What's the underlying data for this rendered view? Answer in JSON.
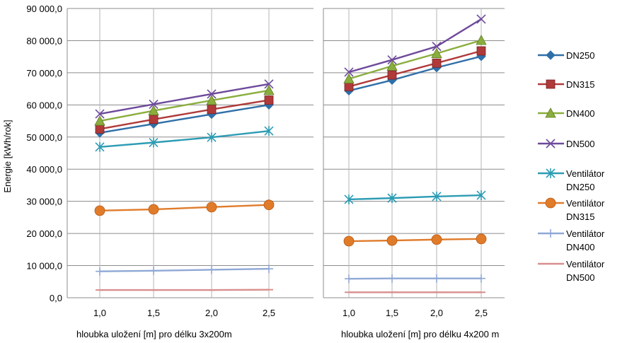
{
  "chart_data": {
    "type": "line",
    "ylabel": "Energie [kWh/rok]",
    "ylim": [
      0,
      90000
    ],
    "yticks": [
      0,
      10000,
      20000,
      30000,
      40000,
      50000,
      60000,
      70000,
      80000,
      90000
    ],
    "ytick_labels": [
      "0,0",
      "10 000,0",
      "20 000,0",
      "30 000,0",
      "40 000,0",
      "50 000,0",
      "60 000,0",
      "70 000,0",
      "80 000,0",
      "90 000,0"
    ],
    "categories": [
      "1,0",
      "1,5",
      "2,0",
      "2,5"
    ],
    "grid": true,
    "legend_position": "right",
    "series_styles": [
      {
        "name": "DN250",
        "label_lines": [
          "DN250"
        ],
        "color": "#2F6FA8",
        "marker": "diamond"
      },
      {
        "name": "DN315",
        "label_lines": [
          "DN315"
        ],
        "color": "#B03A3A",
        "marker": "square"
      },
      {
        "name": "DN400",
        "label_lines": [
          "DN400"
        ],
        "color": "#8AAE3E",
        "marker": "triangle"
      },
      {
        "name": "DN500",
        "label_lines": [
          "DN500"
        ],
        "color": "#6E4A9B",
        "marker": "x"
      },
      {
        "name": "Ventilátor DN250",
        "label_lines": [
          "Ventilátor",
          "DN250"
        ],
        "color": "#2D9CB4",
        "marker": "star"
      },
      {
        "name": "Ventilátor DN315",
        "label_lines": [
          "Ventilátor",
          "DN315"
        ],
        "color": "#E07B2A",
        "marker": "circle"
      },
      {
        "name": "Ventilátor DN400",
        "label_lines": [
          "Ventilátor",
          "DN400"
        ],
        "color": "#8FA8D6",
        "marker": "plus"
      },
      {
        "name": "Ventilátor DN500",
        "label_lines": [
          "Ventilátor",
          "DN500"
        ],
        "color": "#D98E8E",
        "marker": "dash"
      }
    ],
    "panels": [
      {
        "xlabel": "hloubka uložení [m] pro délku 3x200m",
        "series": [
          {
            "name": "DN250",
            "values": [
              51300,
              54100,
              57100,
              60000
            ]
          },
          {
            "name": "DN315",
            "values": [
              52500,
              55500,
              58600,
              61500
            ]
          },
          {
            "name": "DN400",
            "values": [
              55000,
              58200,
              61400,
              64500
            ]
          },
          {
            "name": "DN500",
            "values": [
              57200,
              60200,
              63400,
              66500
            ]
          },
          {
            "name": "Ventilátor DN250",
            "values": [
              46900,
              48300,
              49900,
              51900
            ]
          },
          {
            "name": "Ventilátor DN315",
            "values": [
              27100,
              27500,
              28200,
              28900
            ]
          },
          {
            "name": "Ventilátor DN400",
            "values": [
              8200,
              8400,
              8700,
              9000
            ]
          },
          {
            "name": "Ventilátor DN500",
            "values": [
              2400,
              2400,
              2400,
              2500
            ]
          }
        ]
      },
      {
        "xlabel": "hloubka uložení [m] pro délku 4x200 m",
        "series": [
          {
            "name": "DN250",
            "values": [
              64400,
              67700,
              71600,
              75100
            ]
          },
          {
            "name": "DN315",
            "values": [
              65700,
              69300,
              73000,
              76800
            ]
          },
          {
            "name": "DN400",
            "values": [
              68100,
              72100,
              76000,
              80100
            ]
          },
          {
            "name": "DN500",
            "values": [
              70200,
              74000,
              78200,
              86700
            ]
          },
          {
            "name": "Ventilátor DN250",
            "values": [
              30600,
              31000,
              31500,
              31900
            ]
          },
          {
            "name": "Ventilátor DN315",
            "values": [
              17600,
              17800,
              18100,
              18300
            ]
          },
          {
            "name": "Ventilátor DN400",
            "values": [
              5900,
              6000,
              6000,
              6000
            ]
          },
          {
            "name": "Ventilátor DN500",
            "values": [
              1700,
              1700,
              1700,
              1700
            ]
          }
        ]
      }
    ]
  }
}
